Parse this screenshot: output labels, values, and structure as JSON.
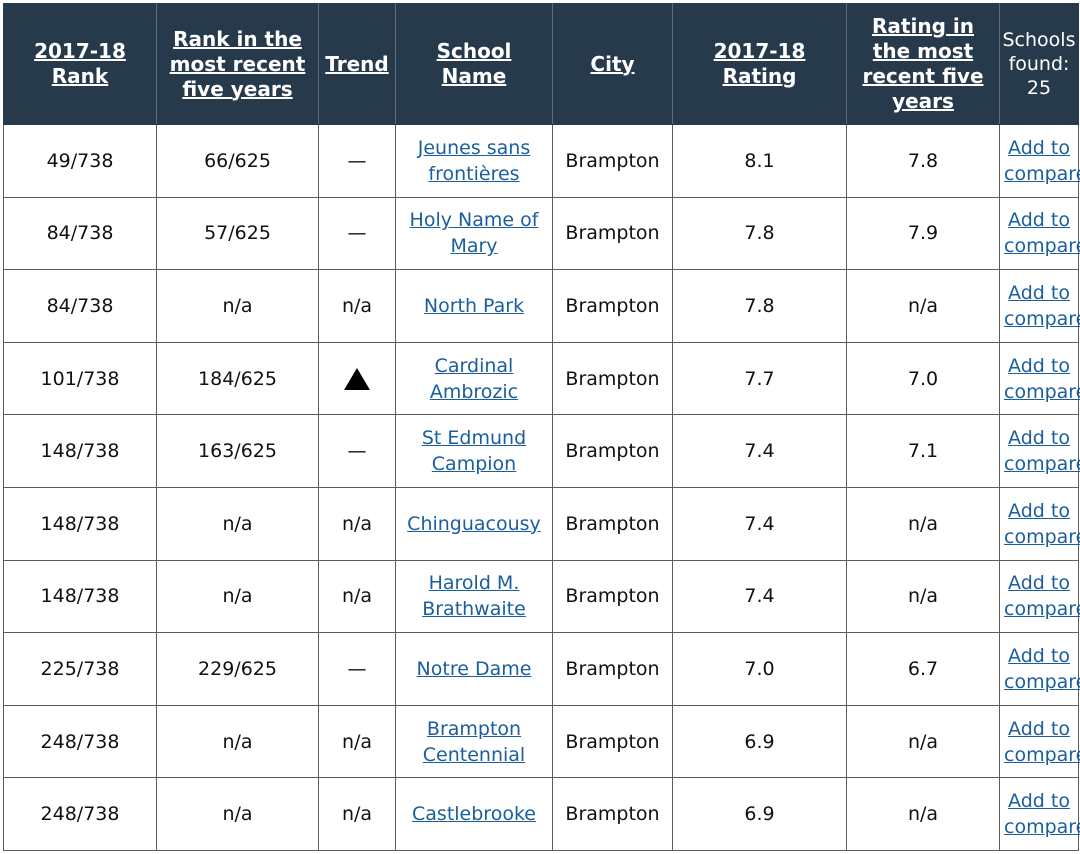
{
  "table": {
    "headers": {
      "rank": "2017-18 Rank",
      "rank_five": "Rank in the most recent five years",
      "trend": "Trend",
      "school": "School Name",
      "city": "City",
      "rating": "2017-18 Rating",
      "rating_five": "Rating in the most recent five years",
      "found_label": "Schools found:",
      "found_count": "25"
    },
    "compare_label": "Add to compare",
    "rows": [
      {
        "rank": "49/738",
        "rank_five": "66/625",
        "trend": "—",
        "trend_icon": "",
        "school": "Jeunes sans frontières",
        "city": "Brampton",
        "rating": "8.1",
        "rating_five": "7.8"
      },
      {
        "rank": "84/738",
        "rank_five": "57/625",
        "trend": "—",
        "trend_icon": "",
        "school": "Holy Name of Mary",
        "city": "Brampton",
        "rating": "7.8",
        "rating_five": "7.9"
      },
      {
        "rank": "84/738",
        "rank_five": "n/a",
        "trend": "n/a",
        "trend_icon": "",
        "school": "North Park",
        "city": "Brampton",
        "rating": "7.8",
        "rating_five": "n/a"
      },
      {
        "rank": "101/738",
        "rank_five": "184/625",
        "trend": "",
        "trend_icon": "up-triangle-icon",
        "school": "Cardinal Ambrozic",
        "city": "Brampton",
        "rating": "7.7",
        "rating_five": "7.0"
      },
      {
        "rank": "148/738",
        "rank_five": "163/625",
        "trend": "—",
        "trend_icon": "",
        "school": "St Edmund Campion",
        "city": "Brampton",
        "rating": "7.4",
        "rating_five": "7.1"
      },
      {
        "rank": "148/738",
        "rank_five": "n/a",
        "trend": "n/a",
        "trend_icon": "",
        "school": "Chinguacousy",
        "city": "Brampton",
        "rating": "7.4",
        "rating_five": "n/a"
      },
      {
        "rank": "148/738",
        "rank_five": "n/a",
        "trend": "n/a",
        "trend_icon": "",
        "school": "Harold M. Brathwaite",
        "city": "Brampton",
        "rating": "7.4",
        "rating_five": "n/a"
      },
      {
        "rank": "225/738",
        "rank_five": "229/625",
        "trend": "—",
        "trend_icon": "",
        "school": "Notre Dame",
        "city": "Brampton",
        "rating": "7.0",
        "rating_five": "6.7"
      },
      {
        "rank": "248/738",
        "rank_five": "n/a",
        "trend": "n/a",
        "trend_icon": "",
        "school": "Brampton Centennial",
        "city": "Brampton",
        "rating": "6.9",
        "rating_five": "n/a"
      },
      {
        "rank": "248/738",
        "rank_five": "n/a",
        "trend": "n/a",
        "trend_icon": "",
        "school": "Castlebrooke",
        "city": "Brampton",
        "rating": "6.9",
        "rating_five": "n/a"
      }
    ]
  }
}
